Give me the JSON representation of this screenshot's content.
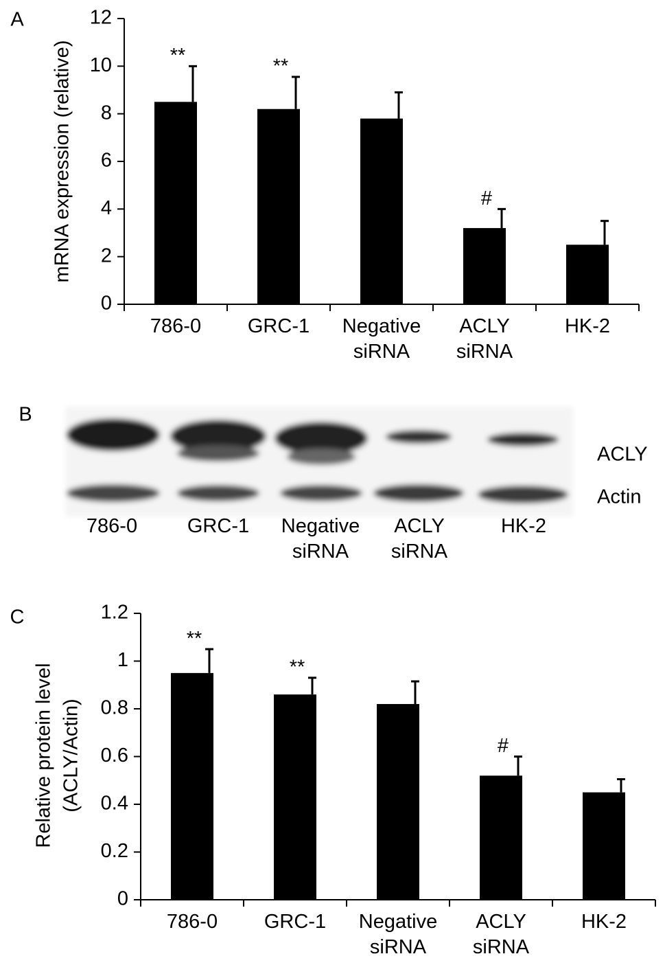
{
  "chart_data": [
    {
      "type": "bar",
      "panel_label": "A",
      "ylabel": [
        "mRNA expression (relative)"
      ],
      "categories": [
        "786-0",
        "GRC-1",
        "Negative siRNA",
        "ACLY siRNA",
        "HK-2"
      ],
      "values": [
        8.5,
        8.2,
        7.8,
        3.2,
        2.5
      ],
      "errors": [
        1.5,
        1.35,
        1.1,
        0.8,
        1.0
      ],
      "annotations": [
        "**",
        "**",
        null,
        "#",
        null
      ],
      "color": "#000000",
      "ylim": [
        0,
        12
      ],
      "yticks": [
        0,
        2,
        4,
        6,
        8,
        10,
        12
      ]
    },
    {
      "type": "bar",
      "panel_label": "C",
      "ylabel": [
        "Relative protein level",
        "(ACLY/Actin)"
      ],
      "categories": [
        "786-0",
        "GRC-1",
        "Negative siRNA",
        "ACLY siRNA",
        "HK-2"
      ],
      "values": [
        0.95,
        0.86,
        0.82,
        0.52,
        0.45
      ],
      "errors": [
        0.1,
        0.07,
        0.095,
        0.08,
        0.055
      ],
      "annotations": [
        "**",
        "**",
        null,
        "#",
        null
      ],
      "color": "#000000",
      "ylim": [
        0,
        1.2
      ],
      "yticks": [
        0,
        0.2,
        0.4,
        0.6,
        0.8,
        1,
        1.2
      ]
    }
  ],
  "blot": {
    "panel_label": "B",
    "lanes": [
      "786-0",
      "GRC-1",
      "Negative siRNA",
      "ACLY siRNA",
      "HK-2"
    ],
    "rows": [
      "ACLY",
      "Actin"
    ]
  }
}
